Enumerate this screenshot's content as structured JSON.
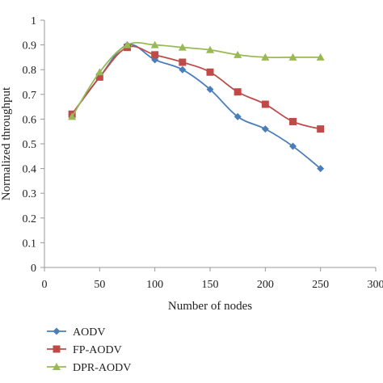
{
  "chart_data": {
    "type": "line",
    "title": "",
    "xlabel": "Number of nodes",
    "ylabel": "Normalized throughput",
    "xlim": [
      0,
      300
    ],
    "ylim": [
      0,
      1
    ],
    "x_ticks": [
      "0",
      "50",
      "100",
      "150",
      "200",
      "250",
      "300"
    ],
    "y_ticks": [
      "0",
      "0.1",
      "0.2",
      "0.3",
      "0.4",
      "0.5",
      "0.6",
      "0.7",
      "0.8",
      "0.9",
      "1"
    ],
    "grid": false,
    "legend_position": "bottom-left",
    "x": [
      25,
      50,
      75,
      100,
      125,
      150,
      175,
      200,
      225,
      250
    ],
    "series": [
      {
        "name": "AODV",
        "color": "#4a7ebb",
        "marker": "diamond",
        "values": [
          0.62,
          0.77,
          0.9,
          0.84,
          0.8,
          0.72,
          0.61,
          0.56,
          0.49,
          0.4
        ]
      },
      {
        "name": "FP-AODV",
        "color": "#be4b48",
        "marker": "square",
        "values": [
          0.62,
          0.77,
          0.89,
          0.86,
          0.83,
          0.79,
          0.71,
          0.66,
          0.59,
          0.56
        ]
      },
      {
        "name": "DPR-AODV",
        "color": "#98b954",
        "marker": "triangle",
        "values": [
          0.61,
          0.79,
          0.9,
          0.9,
          0.89,
          0.88,
          0.86,
          0.85,
          0.85,
          0.85
        ]
      }
    ]
  }
}
